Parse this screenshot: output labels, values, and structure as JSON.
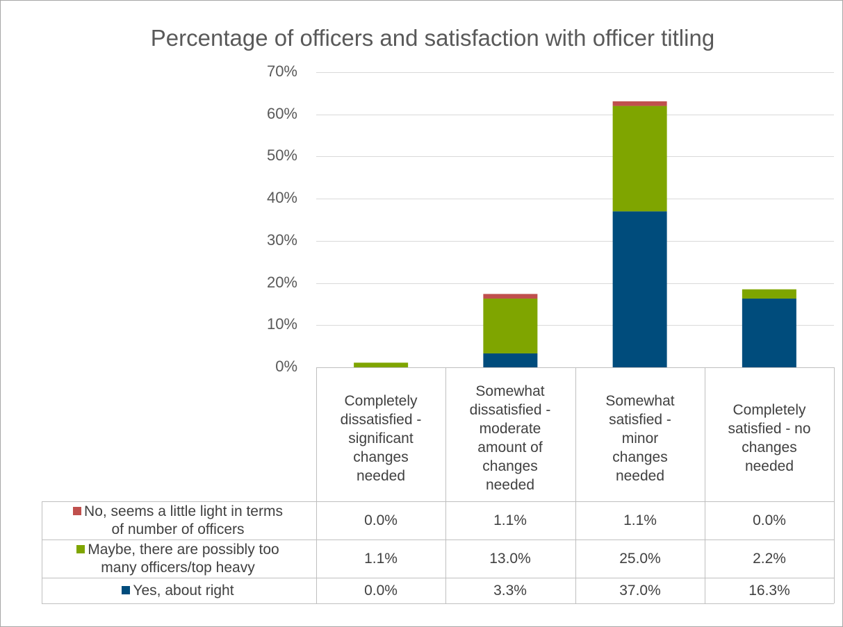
{
  "chart_data": {
    "type": "bar",
    "stacked": true,
    "title": "Percentage of officers and satisfaction with officer titling",
    "categories": [
      "Completely dissatisfied - significant changes needed",
      "Somewhat dissatisfied - moderate amount of changes needed",
      "Somewhat satisfied - minor changes needed",
      "Completely satisfied - no changes needed"
    ],
    "category_lines": [
      [
        "Completely",
        "dissatisfied -",
        "significant",
        "changes",
        "needed"
      ],
      [
        "Somewhat",
        "dissatisfied -",
        "moderate",
        "amount of",
        "changes",
        "needed"
      ],
      [
        "Somewhat",
        "satisfied -",
        "minor",
        "changes",
        "needed"
      ],
      [
        "Completely",
        "satisfied - no",
        "changes",
        "needed"
      ]
    ],
    "series": [
      {
        "name": "No, seems a little light in terms of number of officers",
        "name_lines": [
          "No, seems a little light in terms",
          "of number of officers"
        ],
        "color": "#c0504d",
        "values": [
          0.0,
          1.1,
          1.1,
          0.0
        ],
        "labels": [
          "0.0%",
          "1.1%",
          "1.1%",
          "0.0%"
        ]
      },
      {
        "name": "Maybe, there are possibly too many officers/top heavy",
        "name_lines": [
          "Maybe, there are possibly too",
          "many officers/top heavy"
        ],
        "color": "#7fa500",
        "values": [
          1.1,
          13.0,
          25.0,
          2.2
        ],
        "labels": [
          "1.1%",
          "13.0%",
          "25.0%",
          "2.2%"
        ]
      },
      {
        "name": "Yes, about right",
        "name_lines": [
          "Yes, about right"
        ],
        "color": "#004c7c",
        "values": [
          0.0,
          3.3,
          37.0,
          16.3
        ],
        "labels": [
          "0.0%",
          "3.3%",
          "37.0%",
          "16.3%"
        ]
      }
    ],
    "stack_order_bottom_to_top": [
      "Yes, about right",
      "Maybe, there are possibly too many officers/top heavy",
      "No, seems a little light in terms of number of officers"
    ],
    "ylim": [
      0,
      70
    ],
    "yticks": [
      0,
      10,
      20,
      30,
      40,
      50,
      60,
      70
    ],
    "ytick_labels": [
      "0%",
      "10%",
      "20%",
      "30%",
      "40%",
      "50%",
      "60%",
      "70%"
    ],
    "grid": true,
    "legend": "data table",
    "colors": {
      "grid": "#d9d9d9",
      "table_border": "#bfbfbf",
      "text": "#404040"
    }
  }
}
